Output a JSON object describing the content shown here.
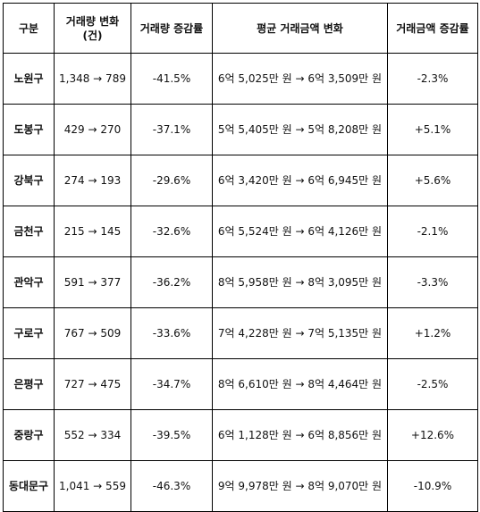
{
  "table": {
    "headers": [
      "구분",
      "거래량 변화 (건)",
      "거래량 증감률",
      "평균 거래금액 변화",
      "거래금액 증감률"
    ],
    "rows": [
      {
        "district": "노원구",
        "volume_change": "1,348 → 789",
        "volume_rate": "-41.5%",
        "price_change": "6억 5,025만 원 → 6억 3,509만 원",
        "price_rate": "-2.3%"
      },
      {
        "district": "도봉구",
        "volume_change": "429 → 270",
        "volume_rate": "-37.1%",
        "price_change": "5억 5,405만 원 → 5억 8,208만 원",
        "price_rate": "+5.1%"
      },
      {
        "district": "강북구",
        "volume_change": "274 → 193",
        "volume_rate": "-29.6%",
        "price_change": "6억 3,420만 원 → 6억 6,945만 원",
        "price_rate": "+5.6%"
      },
      {
        "district": "금천구",
        "volume_change": "215 → 145",
        "volume_rate": "-32.6%",
        "price_change": "6억 5,524만 원 → 6억 4,126만 원",
        "price_rate": "-2.1%"
      },
      {
        "district": "관악구",
        "volume_change": "591 → 377",
        "volume_rate": "-36.2%",
        "price_change": "8억 5,958만 원 → 8억 3,095만 원",
        "price_rate": "-3.3%"
      },
      {
        "district": "구로구",
        "volume_change": "767 → 509",
        "volume_rate": "-33.6%",
        "price_change": "7억 4,228만 원 → 7억 5,135만 원",
        "price_rate": "+1.2%"
      },
      {
        "district": "은평구",
        "volume_change": "727 → 475",
        "volume_rate": "-34.7%",
        "price_change": "8억 6,610만 원 → 8억 4,464만 원",
        "price_rate": "-2.5%"
      },
      {
        "district": "중랑구",
        "volume_change": "552 → 334",
        "volume_rate": "-39.5%",
        "price_change": "6억 1,128만 원 → 6억 8,856만 원",
        "price_rate": "+12.6%"
      },
      {
        "district": "동대문구",
        "volume_change": "1,041 → 559",
        "volume_rate": "-46.3%",
        "price_change": "9억 9,978만 원 → 8억 9,070만 원",
        "price_rate": "-10.9%"
      }
    ]
  }
}
